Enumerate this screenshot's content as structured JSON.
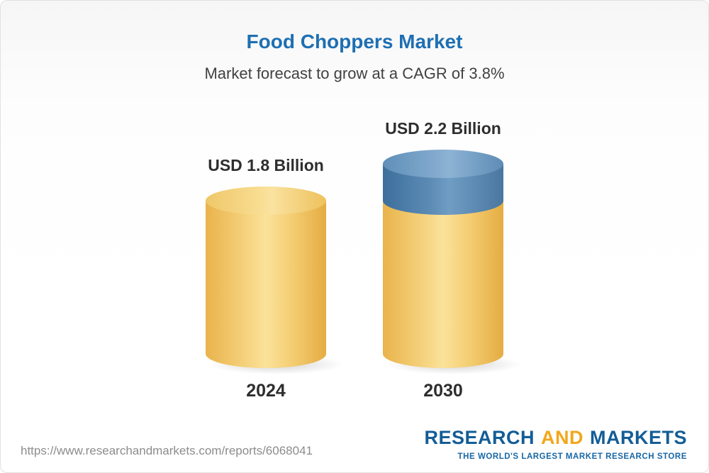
{
  "header": {
    "title": "Food Choppers Market",
    "subtitle": "Market forecast to grow at a CAGR of 3.8%"
  },
  "chart_data": {
    "type": "bar",
    "title": "Food Choppers Market",
    "subtitle": "Market forecast to grow at a CAGR of 3.8%",
    "categories": [
      "2024",
      "2030"
    ],
    "values": [
      1.8,
      2.2
    ],
    "unit": "USD Billion",
    "value_labels": [
      "USD 1.8 Billion",
      "USD 2.2 Billion"
    ],
    "cagr_percent": 3.8,
    "legend_position": "none",
    "grid": false,
    "colors": {
      "base_segment": "#F4CF74",
      "growth_segment": "#5D8CB6",
      "title_text": "#1E6FB2"
    }
  },
  "bars": [
    {
      "label": "USD 1.8 Billion",
      "year": "2024"
    },
    {
      "label": "USD 2.2 Billion",
      "year": "2030"
    }
  ],
  "footer": {
    "url": "https://www.researchandmarkets.com/reports/6068041",
    "logo": {
      "part1": "RESEARCH",
      "part2": "AND",
      "part3": "MARKETS",
      "tagline": "THE WORLD'S LARGEST MARKET RESEARCH STORE"
    }
  }
}
